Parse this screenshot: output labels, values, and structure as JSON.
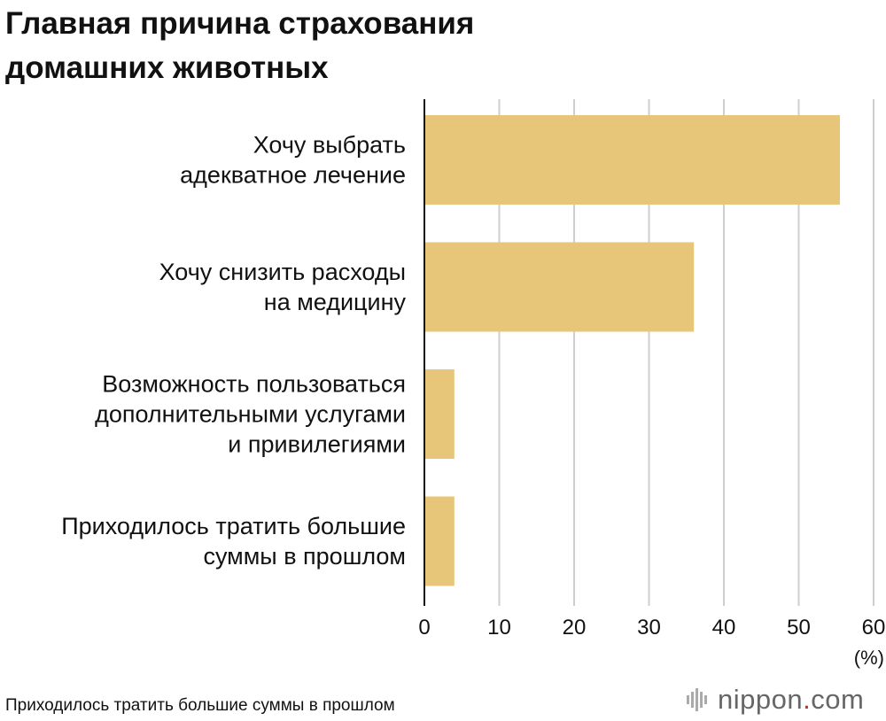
{
  "header": {
    "title_line1": "Главная причина страхования",
    "title_line2": "домашних животных"
  },
  "chart_data": {
    "type": "bar",
    "orientation": "horizontal",
    "title": "Главная причина страхования домашних животных",
    "categories": [
      [
        "Хочу выбрать",
        "адекватное лечение"
      ],
      [
        "Хочу снизить расходы",
        "на медицину"
      ],
      [
        "Возможность пользоваться",
        "дополнительными услугами",
        "и привилегиями"
      ],
      [
        "Приходилось тратить большие",
        "суммы в прошлом"
      ]
    ],
    "values": [
      55.5,
      36,
      4,
      4
    ],
    "xlim": [
      0,
      60
    ],
    "xticks": [
      "0",
      "10",
      "20",
      "30",
      "40",
      "50",
      "60"
    ],
    "xunit": "(%)",
    "bar_color": "#e8c679",
    "grid": true
  },
  "footer": {
    "note": "Приходилось тратить большие суммы в прошлом",
    "brand_name": "nippon",
    "brand_dot": ".",
    "brand_tld": "com",
    "brand_icon": "nippon-logo-icon"
  }
}
